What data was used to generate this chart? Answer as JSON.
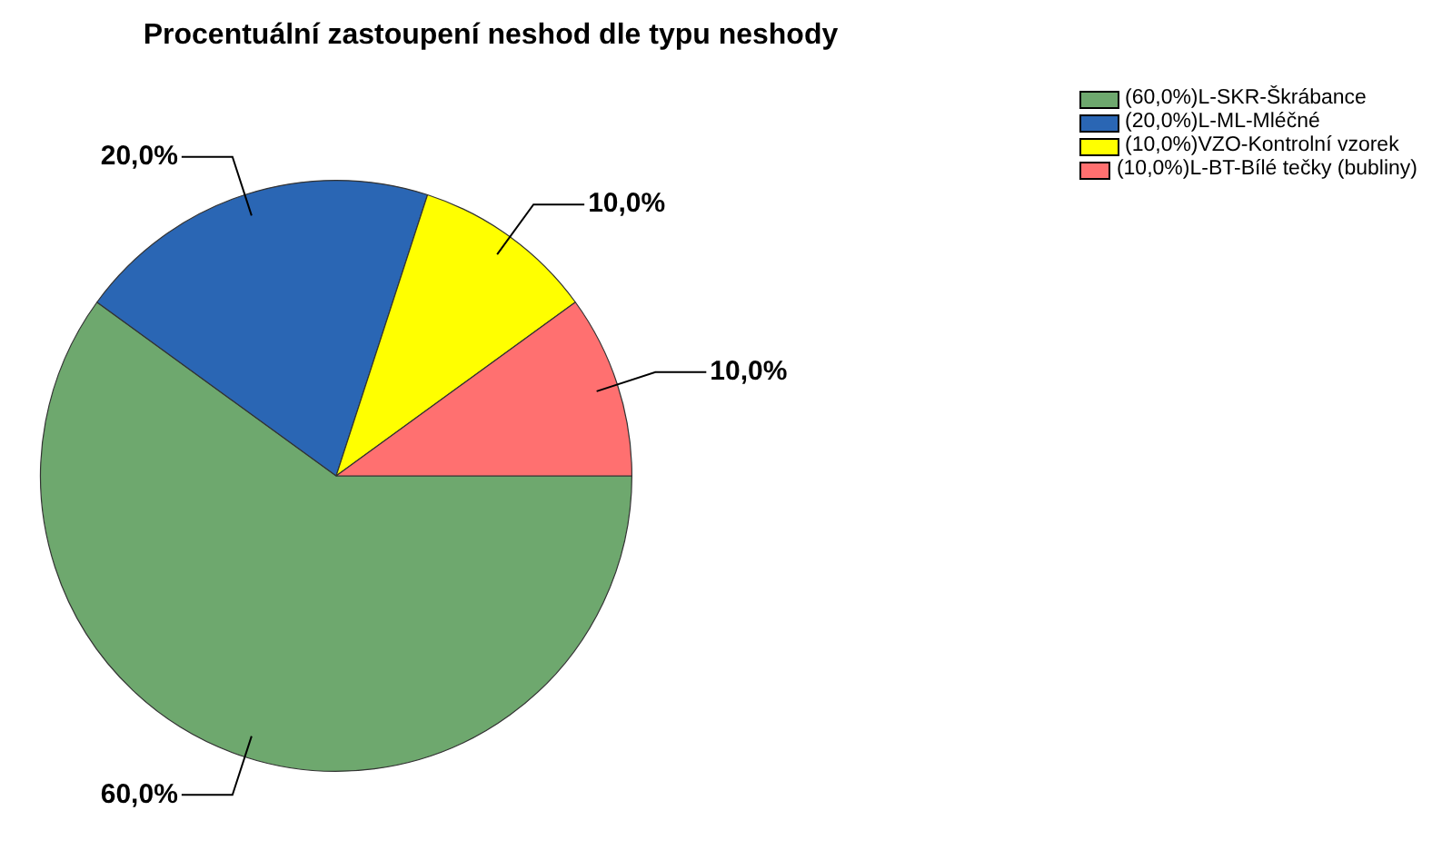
{
  "chart_data": {
    "type": "pie",
    "title": "Procentuální zastoupení neshod dle typu neshody",
    "categories": [
      "(60,0%)L-SKR-Škrábance",
      "(20,0%)L-ML-Mléčné",
      "(10,0%)VZO-Kontrolní vzorek",
      "(10,0%)L-BT-Bílé tečky (bubliny)"
    ],
    "values": [
      60,
      20,
      10,
      10
    ],
    "colors": [
      "#6ea86e",
      "#2a66b4",
      "#ffff00",
      "#ff7070"
    ],
    "value_labels": [
      "60,0%",
      "20,0%",
      "10,0%",
      "10,0%"
    ],
    "legend": "top right"
  }
}
